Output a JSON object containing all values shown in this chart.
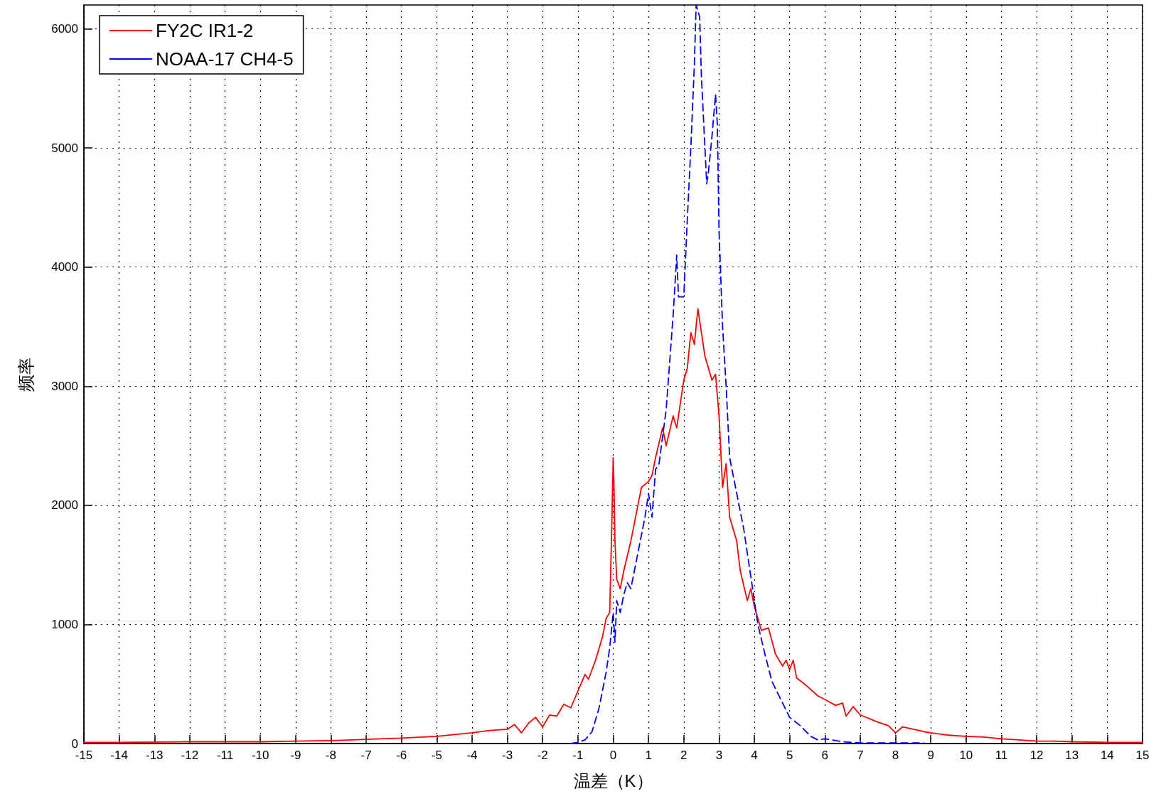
{
  "chart_data": {
    "type": "line",
    "xlabel": "温差（K）",
    "ylabel": "频率",
    "xlim": [
      -15,
      15
    ],
    "xticks": [
      -15,
      -14,
      -13,
      -12,
      -11,
      -10,
      -9,
      -8,
      -7,
      -6,
      -5,
      -4,
      -3,
      -2,
      -1,
      0,
      1,
      2,
      3,
      4,
      5,
      6,
      7,
      8,
      9,
      10,
      11,
      12,
      13,
      14,
      15
    ],
    "ylim": [
      0,
      6200
    ],
    "yticks": [
      0,
      1000,
      2000,
      3000,
      4000,
      5000,
      6000
    ],
    "grid": true,
    "legend": "top left",
    "marker": "none",
    "series": [
      {
        "name": "FY2C IR1-2",
        "color": "#ff0000",
        "line_style": "solid",
        "x": [
          -15,
          -14,
          -12,
          -10,
          -9,
          -8,
          -7,
          -6,
          -5,
          -4,
          -3.5,
          -3,
          -2.8,
          -2.6,
          -2.4,
          -2.2,
          -2,
          -1.8,
          -1.6,
          -1.4,
          -1.2,
          -1,
          -0.8,
          -0.7,
          -0.5,
          -0.3,
          -0.2,
          -0.1,
          -0.05,
          0,
          0.02,
          0.05,
          0.1,
          0.2,
          0.3,
          0.5,
          0.7,
          0.8,
          1,
          1.1,
          1.2,
          1.4,
          1.5,
          1.7,
          1.8,
          1.9,
          2,
          2.1,
          2.2,
          2.3,
          2.4,
          2.5,
          2.6,
          2.8,
          2.9,
          3,
          3.1,
          3.2,
          3.3,
          3.5,
          3.6,
          3.8,
          3.9,
          4,
          4.2,
          4.4,
          4.6,
          4.8,
          4.9,
          5,
          5.1,
          5.2,
          5.5,
          5.8,
          6,
          6.3,
          6.5,
          6.6,
          6.8,
          7,
          7.5,
          7.8,
          8,
          8.2,
          8.5,
          8.8,
          9,
          9.5,
          10,
          10.5,
          11,
          11.5,
          12,
          12.5,
          13,
          14,
          15
        ],
        "values": [
          10,
          10,
          15,
          15,
          20,
          25,
          35,
          45,
          60,
          90,
          110,
          120,
          160,
          90,
          170,
          220,
          140,
          240,
          230,
          330,
          300,
          440,
          580,
          540,
          700,
          900,
          1050,
          1100,
          1700,
          2400,
          2200,
          1700,
          1380,
          1300,
          1450,
          1700,
          2000,
          2150,
          2200,
          2250,
          2400,
          2650,
          2500,
          2750,
          2650,
          2850,
          3050,
          3150,
          3450,
          3350,
          3650,
          3450,
          3250,
          3050,
          3100,
          2750,
          2150,
          2350,
          1900,
          1700,
          1450,
          1200,
          1300,
          1150,
          950,
          970,
          750,
          650,
          700,
          620,
          700,
          550,
          480,
          400,
          370,
          320,
          340,
          230,
          310,
          240,
          180,
          150,
          90,
          140,
          120,
          100,
          90,
          70,
          60,
          55,
          40,
          30,
          20,
          20,
          15,
          10,
          10
        ]
      },
      {
        "name": "NOAA-17 CH4-5",
        "color": "#0000ff",
        "line_style": "dashed",
        "x": [
          -1.2,
          -1,
          -0.8,
          -0.6,
          -0.4,
          -0.2,
          -0.1,
          0,
          0.05,
          0.1,
          0.2,
          0.3,
          0.4,
          0.5,
          0.7,
          0.9,
          1,
          1.1,
          1.2,
          1.3,
          1.5,
          1.6,
          1.7,
          1.8,
          1.85,
          2,
          2.1,
          2.2,
          2.3,
          2.35,
          2.45,
          2.5,
          2.6,
          2.65,
          2.7,
          2.8,
          2.9,
          2.95,
          3,
          3.1,
          3.2,
          3.3,
          3.5,
          3.7,
          3.9,
          4.1,
          4.3,
          4.5,
          4.7,
          4.9,
          5,
          5.3,
          5.6,
          5.8,
          6,
          6.5,
          7,
          8.8
        ],
        "values": [
          0,
          10,
          30,
          100,
          300,
          600,
          800,
          1100,
          850,
          1200,
          1100,
          1250,
          1350,
          1300,
          1600,
          1900,
          2100,
          1900,
          2300,
          2350,
          2800,
          3200,
          3600,
          4100,
          3750,
          3750,
          4400,
          5000,
          5700,
          6200,
          6100,
          5600,
          5000,
          4700,
          4800,
          5100,
          5450,
          5200,
          4300,
          3500,
          3000,
          2400,
          2100,
          1800,
          1400,
          1000,
          750,
          520,
          400,
          280,
          220,
          150,
          60,
          30,
          40,
          15,
          5,
          5
        ]
      }
    ]
  }
}
